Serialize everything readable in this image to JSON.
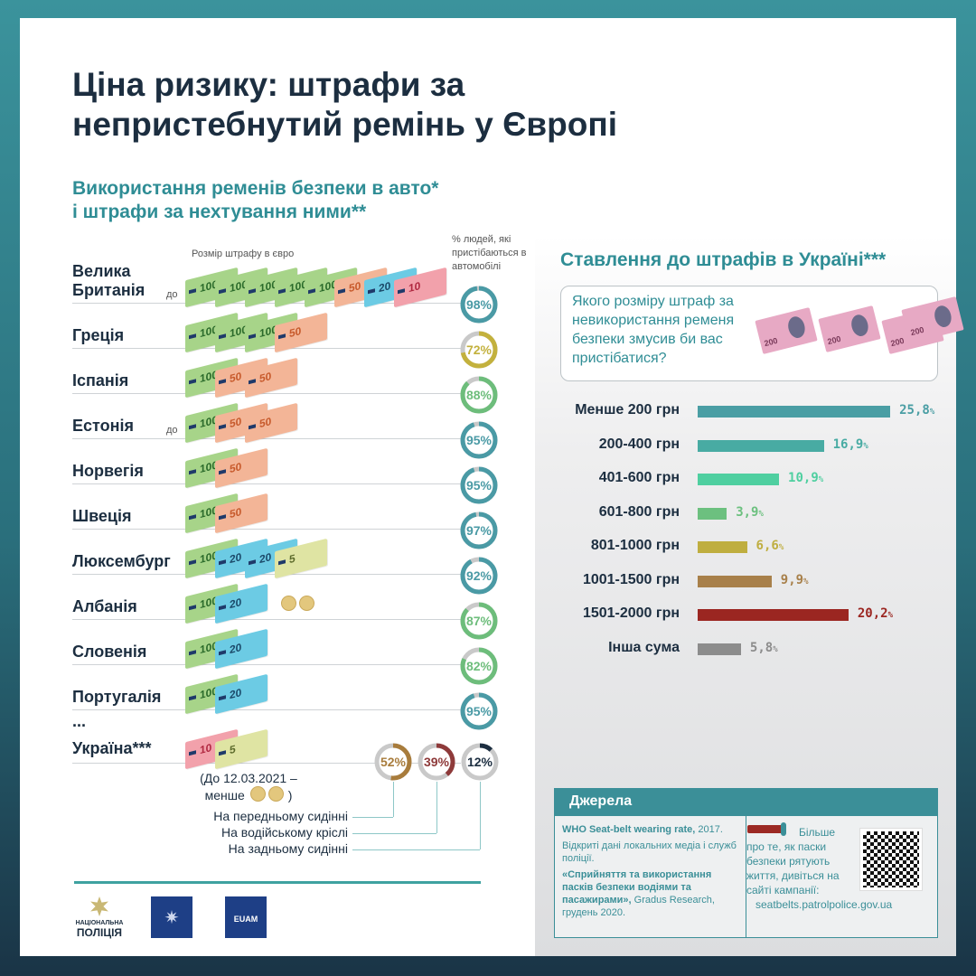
{
  "title": "Ціна ризику: штрафи за непристебнутий ремінь у Європі",
  "left": {
    "subtitle_line1": "Використання ременів безпеки в авто*",
    "subtitle_line2": "і штрафи за нехтування ними**",
    "fine_header": "Розмір штрафу в євро",
    "pct_header": "% людей, які пристібаються в автомобілі",
    "upto": "до",
    "ellipsis": "...",
    "countries": [
      {
        "name": "Велика Британія",
        "upto": true,
        "bills": [
          100,
          100,
          100,
          100,
          100,
          50,
          20,
          10
        ],
        "coins": 0,
        "pct": 98,
        "color": "#4a9aa5"
      },
      {
        "name": "Греція",
        "upto": false,
        "bills": [
          100,
          100,
          100,
          50
        ],
        "coins": 0,
        "pct": 72,
        "color": "#c3b13d"
      },
      {
        "name": "Іспанія",
        "upto": false,
        "bills": [
          100,
          50,
          50
        ],
        "coins": 0,
        "pct": 88,
        "color": "#6dbd7b"
      },
      {
        "name": "Естонія",
        "upto": true,
        "bills": [
          100,
          50,
          50
        ],
        "coins": 0,
        "pct": 95,
        "color": "#4a9aa5"
      },
      {
        "name": "Норвегія",
        "upto": false,
        "bills": [
          100,
          50
        ],
        "coins": 0,
        "pct": 95,
        "color": "#4a9aa5"
      },
      {
        "name": "Швеція",
        "upto": false,
        "bills": [
          100,
          50
        ],
        "coins": 0,
        "pct": 97,
        "color": "#4a9aa5"
      },
      {
        "name": "Люксембург",
        "upto": false,
        "bills": [
          100,
          20,
          20,
          5
        ],
        "coins": 0,
        "pct": 92,
        "color": "#4a9aa5"
      },
      {
        "name": "Албанія",
        "upto": false,
        "bills": [
          100,
          20
        ],
        "coins": 2,
        "pct": 87,
        "color": "#6dbd7b"
      },
      {
        "name": "Словенія",
        "upto": false,
        "bills": [
          100,
          20
        ],
        "coins": 0,
        "pct": 82,
        "color": "#6dbd7b"
      },
      {
        "name": "Португалія",
        "upto": false,
        "bills": [
          100,
          20
        ],
        "coins": 0,
        "pct": 95,
        "color": "#4a9aa5"
      }
    ],
    "ukraine": {
      "name": "Україна***",
      "bills": [
        10,
        5
      ],
      "note_line1": "(До 12.03.2021 –",
      "note_line2": "менше",
      "note_end": ")",
      "seats": [
        {
          "label": "На передньому сидінні",
          "pct": 52,
          "color": "#a87c3c"
        },
        {
          "label": "На водійському кріслі",
          "pct": 39,
          "color": "#8e3a3a"
        },
        {
          "label": "На задньому сидінні",
          "pct": 12,
          "color": "#1c2e40"
        }
      ]
    },
    "logos": {
      "npu_line1": "НАЦІОНАЛЬНА",
      "npu_line2": "ПОЛІЦІЯ",
      "euam": "EUAM"
    }
  },
  "right": {
    "subtitle": "Ставлення до штрафів в Україні***",
    "question": "Якого розміру штраф за невикористання ременя безпеки змусив би вас пристібатися?",
    "banknote_value": "200"
  },
  "chart_data": {
    "type": "bar",
    "orientation": "horizontal",
    "categories": [
      "Менше 200 грн",
      "200-400 грн",
      "401-600 грн",
      "601-800 грн",
      "801-1000 грн",
      "1001-1500 грн",
      "1501-2000 грн",
      "Інша сума"
    ],
    "values": [
      25.8,
      16.9,
      10.9,
      3.9,
      6.6,
      9.9,
      20.2,
      5.8
    ],
    "labels": [
      "25,8",
      "16,9",
      "10,9",
      "3,9",
      "6,6",
      "9,9",
      "20,2",
      "5,8"
    ],
    "unit": "%",
    "colors": [
      "#4a9ea4",
      "#48aba3",
      "#4fcfa0",
      "#6cc07f",
      "#bfae40",
      "#a8804a",
      "#9b2621",
      "#8c8c8c"
    ]
  },
  "sources": {
    "header": "Джерела",
    "items": [
      {
        "bold": "WHO Seat-belt wearing rate,",
        "rest": " 2017."
      },
      {
        "bold": "",
        "rest": "Відкриті дані локальних медіа і служб поліції."
      },
      {
        "bold": "«Сприйняття та використання пасків безпеки водіями та пасажирами»,",
        "rest": " Gradus Research, грудень 2020."
      }
    ],
    "more": "Більше про те, як паски безпеки рятують життя, дивіться на сайті кампанії:",
    "url": "seatbelts.patrolpolice.gov.ua"
  }
}
